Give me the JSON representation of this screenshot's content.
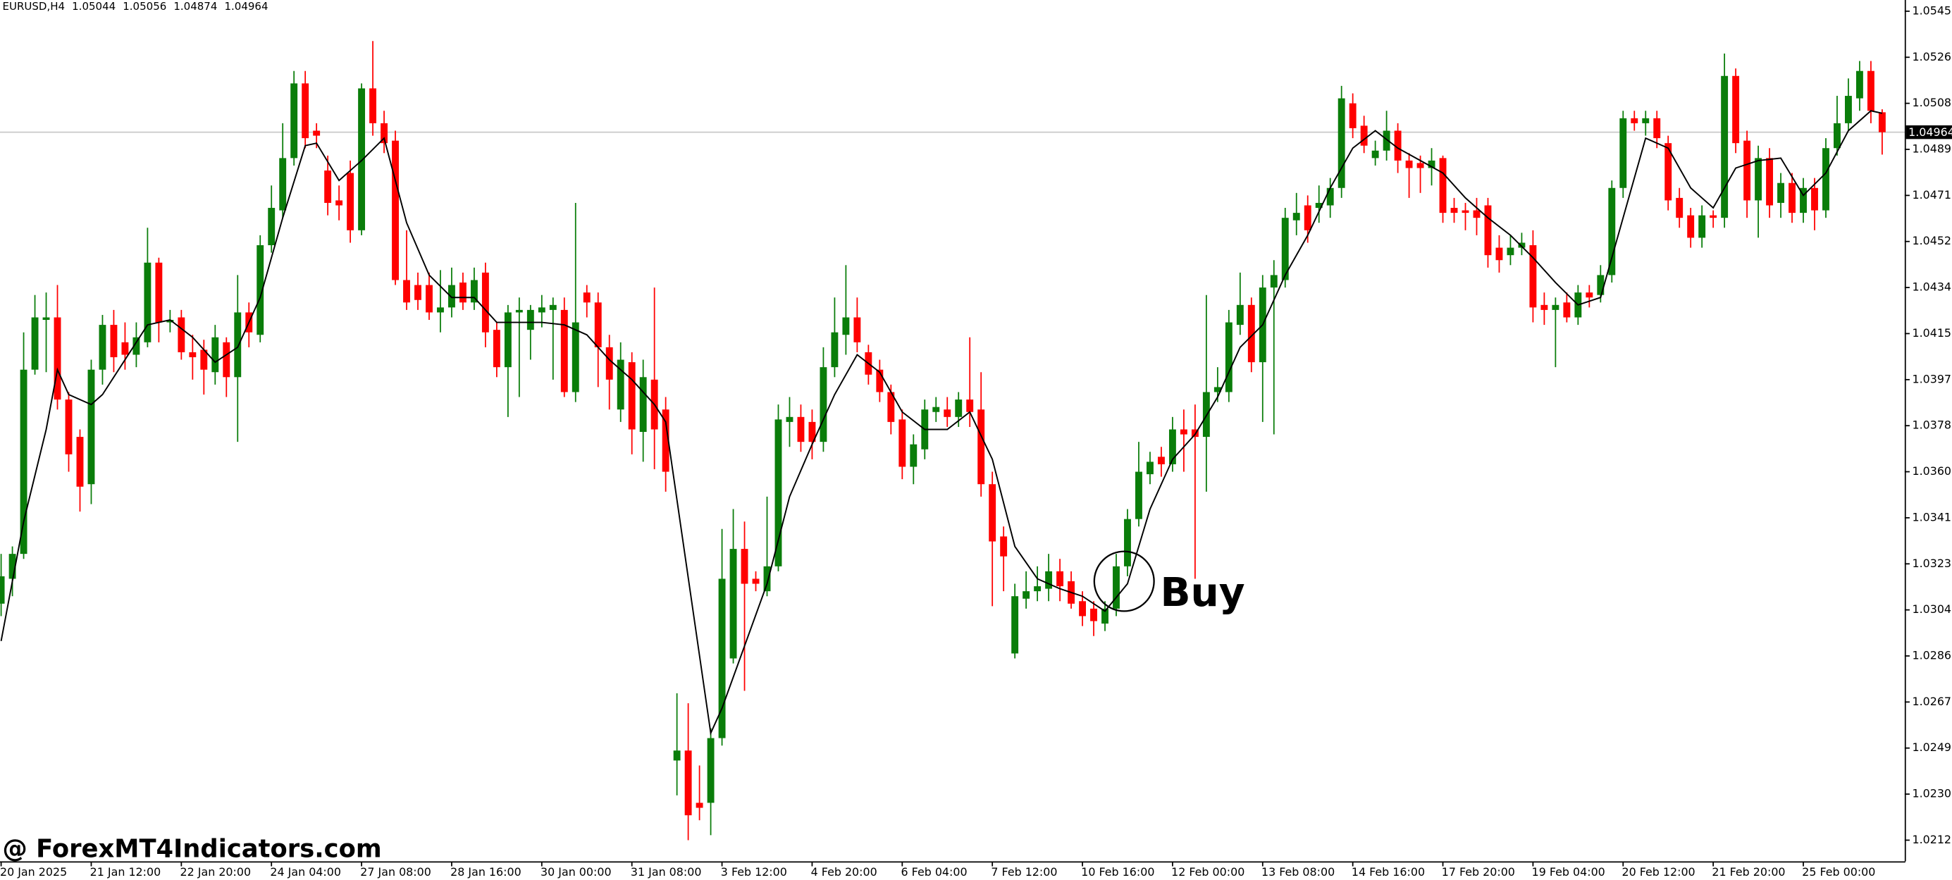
{
  "chart_data": {
    "type": "candlestick",
    "symbol": "EURUSD,H4",
    "annotation": "Buy",
    "watermark": "@ ForexMT4Indicators.com",
    "up_color": "#0a7d0a",
    "down_color": "#ff0000",
    "price_line_color": "#c8c8c8",
    "xlim": [
      -0.1,
      169
    ],
    "ylim": [
      1.02035,
      1.05495
    ],
    "yticks": [
      {
        "value": 1.0545,
        "label": "1.05450"
      },
      1.05265,
      {
        "value": 1.0508,
        "label": "1.05080"
      },
      1.04895,
      {
        "value": 1.0471,
        "label": "1.04710"
      },
      1.04525,
      {
        "value": 1.0434,
        "label": "1.04340"
      },
      1.04155,
      {
        "value": 1.0397,
        "label": "1.03970"
      },
      1.03785,
      {
        "value": 1.036,
        "label": "1.03600"
      },
      1.03415,
      {
        "value": 1.0323,
        "label": "1.03230"
      },
      1.03045,
      {
        "value": 1.0286,
        "label": "1.02860"
      },
      1.02675,
      {
        "value": 1.0249,
        "label": "1.02490"
      },
      1.02305,
      {
        "value": 1.0212,
        "label": "1.02120"
      }
    ],
    "xticks": [
      {
        "value": 0,
        "label": "20 Jan 2025"
      },
      {
        "value": 8,
        "label": "21 Jan 12:00"
      },
      {
        "value": 16,
        "label": "22 Jan 20:00"
      },
      {
        "value": 24,
        "label": "24 Jan 04:00"
      },
      {
        "value": 32,
        "label": "27 Jan 08:00"
      },
      {
        "value": 40,
        "label": "28 Jan 16:00"
      },
      {
        "value": 48,
        "label": "30 Jan 00:00"
      },
      {
        "value": 56,
        "label": "31 Jan 08:00"
      },
      {
        "value": 64,
        "label": "3 Feb 12:00"
      },
      {
        "value": 72,
        "label": "4 Feb 20:00"
      },
      {
        "value": 80,
        "label": "6 Feb 04:00"
      },
      {
        "value": 88,
        "label": "7 Feb 12:00"
      },
      {
        "value": 96,
        "label": "10 Feb 16:00"
      },
      {
        "value": 104,
        "label": "12 Feb 00:00"
      },
      {
        "value": 112,
        "label": "13 Feb 08:00"
      },
      {
        "value": 120,
        "label": "14 Feb 16:00"
      },
      {
        "value": 128,
        "label": "17 Feb 20:00"
      },
      {
        "value": 136,
        "label": "19 Feb 04:00"
      },
      {
        "value": 144,
        "label": "20 Feb 12:00"
      },
      {
        "value": 152,
        "label": "21 Feb 20:00"
      },
      {
        "value": 160,
        "label": "25 Feb 00:00"
      }
    ],
    "open": [
      1.0307,
      1.0317,
      1.0327,
      1.0401,
      1.0421,
      1.0422,
      1.0389,
      1.0374,
      1.0355,
      1.0401,
      1.0419,
      1.0412,
      1.0407,
      1.0412,
      1.0444,
      1.042,
      1.0422,
      1.0408,
      1.0409,
      1.04,
      1.0412,
      1.0398,
      1.0424,
      1.0415,
      1.0451,
      1.0465,
      1.0486,
      1.0516,
      1.0497,
      1.0481,
      1.0469,
      1.048,
      1.0457,
      1.0514,
      1.05,
      1.0493,
      1.0437,
      1.0435,
      1.0435,
      1.0424,
      1.0426,
      1.0436,
      1.0428,
      1.044,
      1.0417,
      1.0402,
      1.0424,
      1.0417,
      1.0424,
      1.0425,
      1.0425,
      1.0392,
      1.0432,
      1.0428,
      1.041,
      1.0385,
      1.0404,
      1.0376,
      1.0397,
      1.0385,
      1.0244,
      1.0248,
      1.0227,
      1.0227,
      1.0253,
      1.0285,
      1.0329,
      1.0317,
      1.0312,
      1.0322,
      1.038,
      1.0382,
      1.038,
      1.0372,
      1.0402,
      1.0415,
      1.0422,
      1.0408,
      1.0401,
      1.0392,
      1.0381,
      1.0362,
      1.0369,
      1.0384,
      1.0385,
      1.0382,
      1.0389,
      1.0385,
      1.0355,
      1.0334,
      1.0287,
      1.0309,
      1.0312,
      1.0313,
      1.032,
      1.0316,
      1.0308,
      1.0305,
      1.0299,
      1.0305,
      1.0322,
      1.0341,
      1.0359,
      1.0366,
      1.0363,
      1.0377,
      1.0377,
      1.0374,
      1.0392,
      1.0392,
      1.0419,
      1.0427,
      1.0404,
      1.0434,
      1.0437,
      1.0461,
      1.0467,
      1.0466,
      1.0467,
      1.0474,
      1.0508,
      1.0499,
      1.0486,
      1.0489,
      1.0497,
      1.0485,
      1.0484,
      1.0482,
      1.0486,
      1.0466,
      1.0465,
      1.0465,
      1.0467,
      1.045,
      1.0447,
      1.045,
      1.0451,
      1.0427,
      1.0425,
      1.0428,
      1.0422,
      1.0432,
      1.0431,
      1.0439,
      1.0474,
      1.0502,
      1.05,
      1.0502,
      1.0492,
      1.047,
      1.0463,
      1.0454,
      1.0463,
      1.0462,
      1.0519,
      1.0493,
      1.0469,
      1.0486,
      1.0468,
      1.0476,
      1.0464,
      1.0474,
      1.0465,
      1.049,
      1.05,
      1.051,
      1.0521,
      1.05044
    ],
    "high": [
      1.0327,
      1.033,
      1.0416,
      1.0431,
      1.0432,
      1.0435,
      1.0392,
      1.0377,
      1.0405,
      1.0423,
      1.0425,
      1.042,
      1.042,
      1.0458,
      1.0446,
      1.0425,
      1.0425,
      1.0415,
      1.0413,
      1.0419,
      1.0414,
      1.0439,
      1.0428,
      1.0455,
      1.0475,
      1.05,
      1.0521,
      1.0521,
      1.05,
      1.0487,
      1.0475,
      1.0485,
      1.0516,
      1.0533,
      1.0505,
      1.0497,
      1.0457,
      1.044,
      1.044,
      1.0441,
      1.0442,
      1.044,
      1.0442,
      1.0444,
      1.042,
      1.0427,
      1.043,
      1.0427,
      1.0431,
      1.043,
      1.043,
      1.0468,
      1.0435,
      1.0432,
      1.0415,
      1.0412,
      1.0408,
      1.0405,
      1.0434,
      1.039,
      1.0271,
      1.0267,
      1.0242,
      1.0257,
      1.0337,
      1.0345,
      1.034,
      1.032,
      1.035,
      1.0387,
      1.039,
      1.0387,
      1.0385,
      1.041,
      1.043,
      1.0443,
      1.043,
      1.0411,
      1.0405,
      1.0395,
      1.0385,
      1.0375,
      1.0389,
      1.039,
      1.039,
      1.0392,
      1.0414,
      1.04,
      1.036,
      1.0338,
      1.0315,
      1.032,
      1.0322,
      1.0327,
      1.0325,
      1.032,
      1.0312,
      1.0308,
      1.0308,
      1.0327,
      1.0345,
      1.0372,
      1.0368,
      1.037,
      1.0382,
      1.0385,
      1.0387,
      1.0431,
      1.0402,
      1.0425,
      1.044,
      1.043,
      1.0439,
      1.0445,
      1.0466,
      1.0472,
      1.0471,
      1.0475,
      1.0478,
      1.0515,
      1.0512,
      1.0503,
      1.0493,
      1.0505,
      1.05,
      1.0488,
      1.0487,
      1.049,
      1.0487,
      1.047,
      1.0468,
      1.047,
      1.047,
      1.0455,
      1.0455,
      1.0456,
      1.0457,
      1.0432,
      1.043,
      1.0432,
      1.0435,
      1.0435,
      1.0443,
      1.0477,
      1.0505,
      1.0505,
      1.0505,
      1.0505,
      1.0495,
      1.0474,
      1.0466,
      1.0467,
      1.0465,
      1.0528,
      1.0522,
      1.0497,
      1.0491,
      1.049,
      1.048,
      1.048,
      1.0478,
      1.0478,
      1.0494,
      1.0511,
      1.0518,
      1.0525,
      1.0525,
      1.05056
    ],
    "low": [
      1.0302,
      1.031,
      1.0325,
      1.0399,
      1.04,
      1.0385,
      1.036,
      1.0344,
      1.0347,
      1.0395,
      1.04,
      1.0401,
      1.0402,
      1.041,
      1.0412,
      1.0416,
      1.0405,
      1.0397,
      1.0391,
      1.0395,
      1.039,
      1.0372,
      1.041,
      1.0412,
      1.0448,
      1.0462,
      1.0483,
      1.049,
      1.049,
      1.0463,
      1.0461,
      1.0452,
      1.0455,
      1.0495,
      1.0488,
      1.0435,
      1.0425,
      1.0425,
      1.0421,
      1.0416,
      1.0422,
      1.0425,
      1.0425,
      1.041,
      1.0398,
      1.0382,
      1.039,
      1.0405,
      1.0418,
      1.0397,
      1.039,
      1.0388,
      1.0422,
      1.0394,
      1.0385,
      1.038,
      1.0367,
      1.0364,
      1.0361,
      1.0352,
      1.023,
      1.0212,
      1.022,
      1.0214,
      1.025,
      1.0283,
      1.0272,
      1.0312,
      1.031,
      1.032,
      1.037,
      1.0368,
      1.0365,
      1.0368,
      1.0398,
      1.0407,
      1.0408,
      1.0395,
      1.0388,
      1.0375,
      1.0357,
      1.0355,
      1.0365,
      1.038,
      1.0378,
      1.0378,
      1.0378,
      1.035,
      1.0306,
      1.0312,
      1.0285,
      1.0305,
      1.0308,
      1.0308,
      1.0308,
      1.0305,
      1.0298,
      1.0294,
      1.0296,
      1.0302,
      1.0318,
      1.0338,
      1.0355,
      1.0358,
      1.036,
      1.036,
      1.0317,
      1.0352,
      1.0388,
      1.0388,
      1.0415,
      1.04,
      1.038,
      1.0375,
      1.0434,
      1.0455,
      1.0452,
      1.046,
      1.0462,
      1.047,
      1.0494,
      1.0488,
      1.0483,
      1.0485,
      1.048,
      1.047,
      1.0472,
      1.0475,
      1.046,
      1.046,
      1.0457,
      1.0455,
      1.0442,
      1.044,
      1.0443,
      1.0447,
      1.042,
      1.0419,
      1.0402,
      1.042,
      1.0419,
      1.0426,
      1.0428,
      1.0436,
      1.047,
      1.0497,
      1.0495,
      1.049,
      1.0465,
      1.0458,
      1.045,
      1.045,
      1.0458,
      1.0458,
      1.0488,
      1.0462,
      1.0454,
      1.0462,
      1.0462,
      1.046,
      1.046,
      1.0457,
      1.0462,
      1.0487,
      1.0497,
      1.0505,
      1.05,
      1.04874
    ],
    "close": [
      1.0318,
      1.0327,
      1.0401,
      1.0422,
      1.0422,
      1.0389,
      1.0367,
      1.0354,
      1.0401,
      1.0419,
      1.0406,
      1.0407,
      1.0414,
      1.0444,
      1.042,
      1.0421,
      1.0408,
      1.0406,
      1.0401,
      1.0414,
      1.0398,
      1.0424,
      1.0416,
      1.0451,
      1.0466,
      1.0486,
      1.0516,
      1.0494,
      1.0495,
      1.0468,
      1.0467,
      1.0457,
      1.0514,
      1.05,
      1.0492,
      1.0437,
      1.0428,
      1.0429,
      1.0424,
      1.0426,
      1.0435,
      1.0428,
      1.0437,
      1.0416,
      1.0402,
      1.0424,
      1.0425,
      1.0425,
      1.0426,
      1.0427,
      1.0392,
      1.042,
      1.0428,
      1.041,
      1.0397,
      1.0405,
      1.0377,
      1.0398,
      1.0377,
      1.036,
      1.0248,
      1.0222,
      1.0225,
      1.0253,
      1.0317,
      1.0329,
      1.0315,
      1.0315,
      1.0322,
      1.0381,
      1.0382,
      1.0372,
      1.0372,
      1.0402,
      1.0416,
      1.0422,
      1.0412,
      1.0399,
      1.0392,
      1.038,
      1.0362,
      1.0371,
      1.0385,
      1.0386,
      1.0382,
      1.0389,
      1.0384,
      1.0355,
      1.0332,
      1.0326,
      1.031,
      1.0312,
      1.0314,
      1.032,
      1.0314,
      1.0307,
      1.0302,
      1.03,
      1.0305,
      1.0322,
      1.0341,
      1.036,
      1.0364,
      1.0363,
      1.0377,
      1.0375,
      1.0374,
      1.0392,
      1.0394,
      1.042,
      1.0427,
      1.0404,
      1.0434,
      1.0439,
      1.0462,
      1.0464,
      1.0457,
      1.0468,
      1.0474,
      1.051,
      1.0498,
      1.0491,
      1.0489,
      1.0497,
      1.0485,
      1.0482,
      1.0482,
      1.0485,
      1.0464,
      1.0464,
      1.0464,
      1.0462,
      1.0447,
      1.0445,
      1.045,
      1.0452,
      1.0426,
      1.0425,
      1.0427,
      1.0422,
      1.0432,
      1.043,
      1.0439,
      1.0474,
      1.0502,
      1.05,
      1.0502,
      1.0494,
      1.0469,
      1.0462,
      1.0454,
      1.0463,
      1.0462,
      1.0519,
      1.0492,
      1.0469,
      1.0486,
      1.0467,
      1.0476,
      1.0464,
      1.0474,
      1.0465,
      1.049,
      1.05,
      1.0511,
      1.0521,
      1.0505,
      1.04964
    ],
    "ma": {
      "color": "#000000",
      "x": [
        0,
        2,
        4,
        5,
        6,
        7,
        8,
        9,
        11,
        13,
        15,
        17,
        19,
        21,
        23,
        25,
        27,
        28,
        30,
        32,
        34,
        36,
        38,
        40,
        42,
        44,
        46,
        48,
        50,
        52,
        54,
        56,
        58,
        59,
        63,
        64,
        66,
        68,
        70,
        72,
        74,
        76,
        78,
        80,
        82,
        84,
        86,
        88,
        90,
        92,
        94,
        96,
        98,
        100,
        102,
        104,
        106,
        108,
        110,
        112,
        114,
        116,
        118,
        120,
        122,
        124,
        126,
        128,
        130,
        132,
        134,
        136,
        138,
        140,
        142,
        144,
        146,
        148,
        150,
        152,
        154,
        156,
        158,
        160,
        162,
        164,
        166,
        167
      ],
      "values": [
        1.0292,
        1.034,
        1.0377,
        1.0401,
        1.0391,
        1.0389,
        1.0387,
        1.0391,
        1.0405,
        1.0419,
        1.0421,
        1.0414,
        1.0404,
        1.041,
        1.043,
        1.0462,
        1.0491,
        1.0492,
        1.0477,
        1.0485,
        1.0494,
        1.046,
        1.0439,
        1.043,
        1.043,
        1.042,
        1.042,
        1.042,
        1.0419,
        1.0415,
        1.0405,
        1.0397,
        1.0387,
        1.038,
        1.0255,
        1.0265,
        1.029,
        1.0315,
        1.035,
        1.0371,
        1.0391,
        1.0407,
        1.04,
        1.0384,
        1.0377,
        1.0377,
        1.0384,
        1.0365,
        1.033,
        1.0317,
        1.0313,
        1.031,
        1.0304,
        1.0315,
        1.0345,
        1.0365,
        1.0375,
        1.039,
        1.041,
        1.0419,
        1.0439,
        1.0455,
        1.0474,
        1.049,
        1.0497,
        1.049,
        1.0485,
        1.048,
        1.047,
        1.0462,
        1.0455,
        1.0446,
        1.0436,
        1.0427,
        1.043,
        1.0462,
        1.0494,
        1.049,
        1.0474,
        1.0466,
        1.0482,
        1.0485,
        1.0486,
        1.0471,
        1.048,
        1.0497,
        1.0505,
        1.0504
      ]
    }
  }
}
